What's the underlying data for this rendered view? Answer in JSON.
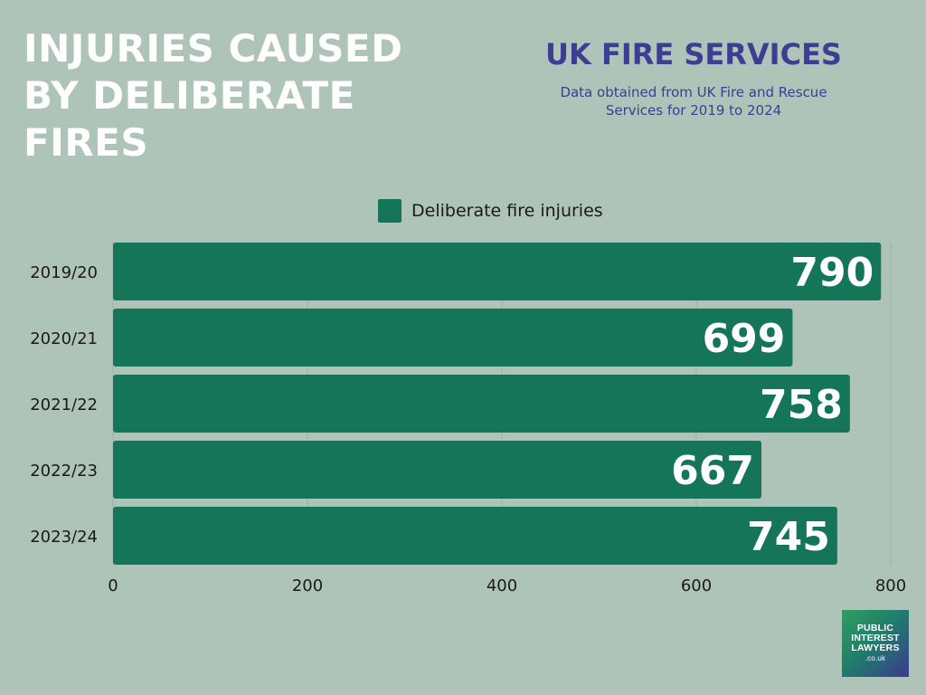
{
  "header": {
    "title_lines": [
      "INJURIES CAUSED",
      "BY DELIBERATE",
      "FIRES"
    ],
    "brand": "UK FIRE SERVICES",
    "subtitle_lines": [
      "Data obtained from UK Fire and Rescue",
      "Services for 2019 to 2024"
    ]
  },
  "logo": {
    "lines": [
      "PUBLIC",
      "INTEREST",
      "LAWYERS",
      ".co.uk"
    ]
  },
  "colors": {
    "background": "#afc4b8",
    "bar": "#147559",
    "title": "#ffffff",
    "brand": "#3d3d93"
  },
  "chart_data": {
    "type": "bar",
    "orientation": "horizontal",
    "categories": [
      "2019/20",
      "2020/21",
      "2021/22",
      "2022/23",
      "2023/24"
    ],
    "series": [
      {
        "name": "Deliberate fire injuries",
        "values": [
          790,
          699,
          758,
          667,
          745
        ]
      }
    ],
    "xlim": [
      0,
      800
    ],
    "xticks": [
      0,
      200,
      400,
      600,
      800
    ],
    "grid": true,
    "legend": "top-center",
    "data_labels": true
  }
}
